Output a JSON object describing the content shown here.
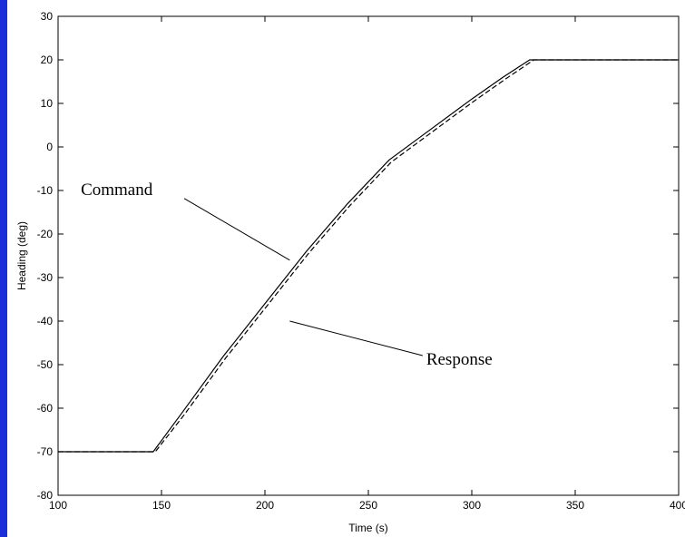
{
  "colors": {
    "slide_background": "#1a2fd9",
    "figure_background": "#ffffff",
    "line": "#000000"
  },
  "chart_data": {
    "type": "line",
    "xlabel": "Time (s)",
    "ylabel": "Heading (deg)",
    "xlim": [
      100,
      400
    ],
    "ylim": [
      -80,
      30
    ],
    "xticks": [
      100,
      150,
      200,
      250,
      300,
      350,
      400
    ],
    "yticks": [
      30,
      20,
      10,
      0,
      -10,
      -20,
      -30,
      -40,
      -50,
      -60,
      -70,
      -80
    ],
    "grid": false,
    "series": [
      {
        "name": "Command",
        "x": [
          100,
          146,
          160,
          180,
          200,
          220,
          240,
          260,
          280,
          300,
          315,
          328,
          400
        ],
        "y": [
          -70,
          -70,
          -61,
          -48,
          -36,
          -24,
          -13,
          -3,
          4,
          11,
          16,
          20,
          20
        ]
      },
      {
        "name": "Response",
        "x": [
          100,
          147,
          161,
          181,
          201,
          221,
          241,
          261,
          281,
          301,
          316,
          330,
          400
        ],
        "y": [
          -70,
          -70,
          -61.5,
          -48.5,
          -36.5,
          -24.5,
          -13.5,
          -3.5,
          3.5,
          10.5,
          15.5,
          20,
          20
        ]
      }
    ],
    "annotations": [
      {
        "text": "Command",
        "x": 111,
        "y": -11,
        "arrow_to": [
          212,
          -26
        ]
      },
      {
        "text": "Response",
        "x": 278,
        "y": -50,
        "arrow_to": [
          212,
          -40
        ]
      }
    ]
  }
}
